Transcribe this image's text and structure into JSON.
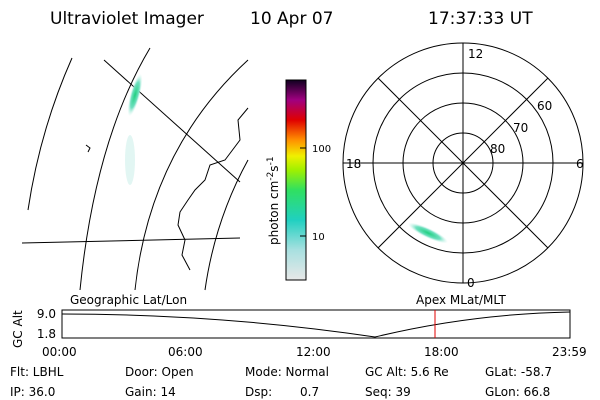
{
  "header": {
    "title": "Ultraviolet Imager",
    "date": "10 Apr 07",
    "time": "17:37:33 UT"
  },
  "colorbar": {
    "label": {
      "text": "photon cm",
      "exp1": "-2",
      "unit2": "s",
      "exp2": "-1"
    },
    "ticks": [
      "100",
      "10"
    ]
  },
  "polar": {
    "mlt_labels": [
      "12",
      "18",
      "6",
      "0"
    ],
    "lat_labels": [
      "60",
      "70",
      "80"
    ]
  },
  "timeline": {
    "left_label": "Geographic Lat/Lon",
    "right_label": "Apex MLat/MLT",
    "y_title": "GC Alt",
    "y_labels": [
      "9.0",
      "1.8"
    ],
    "x_labels": [
      "00:00",
      "06:00",
      "12:00",
      "18:00",
      "23:59"
    ]
  },
  "footer": {
    "filter": "Flt: LBHL",
    "ip": "IP: 36.0",
    "door": "Door: Open",
    "gain": "Gain: 14",
    "mode": "Mode: Normal",
    "dsp_label": "Dsp:",
    "dsp_value": "0.7",
    "gc_alt": "GC Alt: 5.6 Re",
    "seq": "Seq: 39",
    "glat": "GLat: -58.7",
    "glon": "GLon: 66.8"
  }
}
